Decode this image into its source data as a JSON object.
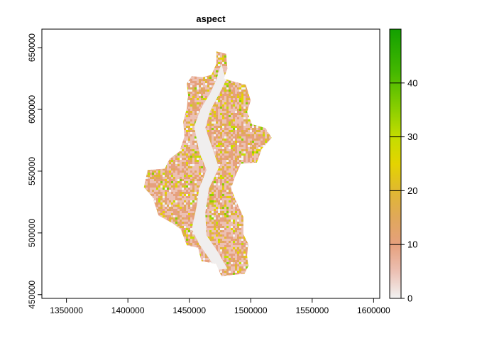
{
  "chart_data": {
    "type": "heatmap",
    "title": "aspect",
    "xlabel": "",
    "ylabel": "",
    "xlim": [
      1330000,
      1605000
    ],
    "ylim": [
      447000,
      665000
    ],
    "x_ticks": [
      1350000,
      1400000,
      1450000,
      1500000,
      1550000,
      1600000
    ],
    "x_tick_labels": [
      "1350000",
      "1400000",
      "1450000",
      "1500000",
      "1550000",
      "1600000"
    ],
    "y_ticks": [
      450000,
      500000,
      550000,
      600000,
      650000
    ],
    "y_tick_labels": [
      "450000",
      "500000",
      "550000",
      "600000",
      "650000"
    ],
    "legend": {
      "position": "right",
      "min": 0,
      "max": 50,
      "ticks": [
        0,
        10,
        20,
        30,
        40
      ],
      "tick_labels": [
        "0",
        "10",
        "20",
        "30",
        "40"
      ],
      "colors": [
        {
          "value": 0,
          "color": "#f2f2f2"
        },
        {
          "value": 5,
          "color": "#ecc0b3"
        },
        {
          "value": 10,
          "color": "#e6a07d"
        },
        {
          "value": 15,
          "color": "#e0a85a"
        },
        {
          "value": 20,
          "color": "#e0b830"
        },
        {
          "value": 25,
          "color": "#e4d400"
        },
        {
          "value": 30,
          "color": "#c4dd00"
        },
        {
          "value": 35,
          "color": "#8ccf00"
        },
        {
          "value": 42,
          "color": "#44b800"
        },
        {
          "value": 50,
          "color": "#13a000"
        }
      ]
    },
    "region_boundary": [
      [
        1472000,
        647000
      ],
      [
        1480000,
        645000
      ],
      [
        1481000,
        633000
      ],
      [
        1478000,
        625000
      ],
      [
        1488000,
        622000
      ],
      [
        1496000,
        620000
      ],
      [
        1500000,
        607000
      ],
      [
        1497000,
        598000
      ],
      [
        1501000,
        588000
      ],
      [
        1512000,
        585000
      ],
      [
        1517000,
        577000
      ],
      [
        1509000,
        568000
      ],
      [
        1505000,
        557000
      ],
      [
        1492000,
        556000
      ],
      [
        1487000,
        545000
      ],
      [
        1484000,
        536000
      ],
      [
        1488000,
        526000
      ],
      [
        1494000,
        513000
      ],
      [
        1494000,
        499000
      ],
      [
        1498000,
        491000
      ],
      [
        1497000,
        482000
      ],
      [
        1498000,
        473000
      ],
      [
        1495000,
        467000
      ],
      [
        1476000,
        465000
      ],
      [
        1472000,
        475000
      ],
      [
        1460000,
        477000
      ],
      [
        1457000,
        488000
      ],
      [
        1448000,
        490000
      ],
      [
        1443000,
        503000
      ],
      [
        1436000,
        508000
      ],
      [
        1425000,
        514000
      ],
      [
        1420000,
        529000
      ],
      [
        1413000,
        537000
      ],
      [
        1416000,
        551000
      ],
      [
        1430000,
        552000
      ],
      [
        1434000,
        560000
      ],
      [
        1442000,
        566000
      ],
      [
        1446000,
        578000
      ],
      [
        1445000,
        590000
      ],
      [
        1448000,
        601000
      ],
      [
        1449000,
        611000
      ],
      [
        1448000,
        621000
      ],
      [
        1452000,
        627000
      ],
      [
        1461000,
        626000
      ],
      [
        1468000,
        628000
      ],
      [
        1472000,
        637000
      ]
    ],
    "valley": [
      [
        1476000,
        637000
      ],
      [
        1472000,
        624000
      ],
      [
        1467000,
        613000
      ],
      [
        1459000,
        600000
      ],
      [
        1454000,
        586000
      ],
      [
        1458000,
        566000
      ],
      [
        1464000,
        551000
      ],
      [
        1458000,
        536000
      ],
      [
        1456000,
        522000
      ],
      [
        1452000,
        503000
      ],
      [
        1458000,
        491000
      ],
      [
        1467000,
        478000
      ],
      [
        1472000,
        470000
      ],
      [
        1481000,
        471000
      ],
      [
        1473000,
        485000
      ],
      [
        1464000,
        498000
      ],
      [
        1463000,
        516000
      ],
      [
        1466000,
        536000
      ],
      [
        1474000,
        553000
      ],
      [
        1469000,
        568000
      ],
      [
        1463000,
        585000
      ],
      [
        1467000,
        599000
      ],
      [
        1474000,
        612000
      ],
      [
        1480000,
        624000
      ]
    ]
  }
}
